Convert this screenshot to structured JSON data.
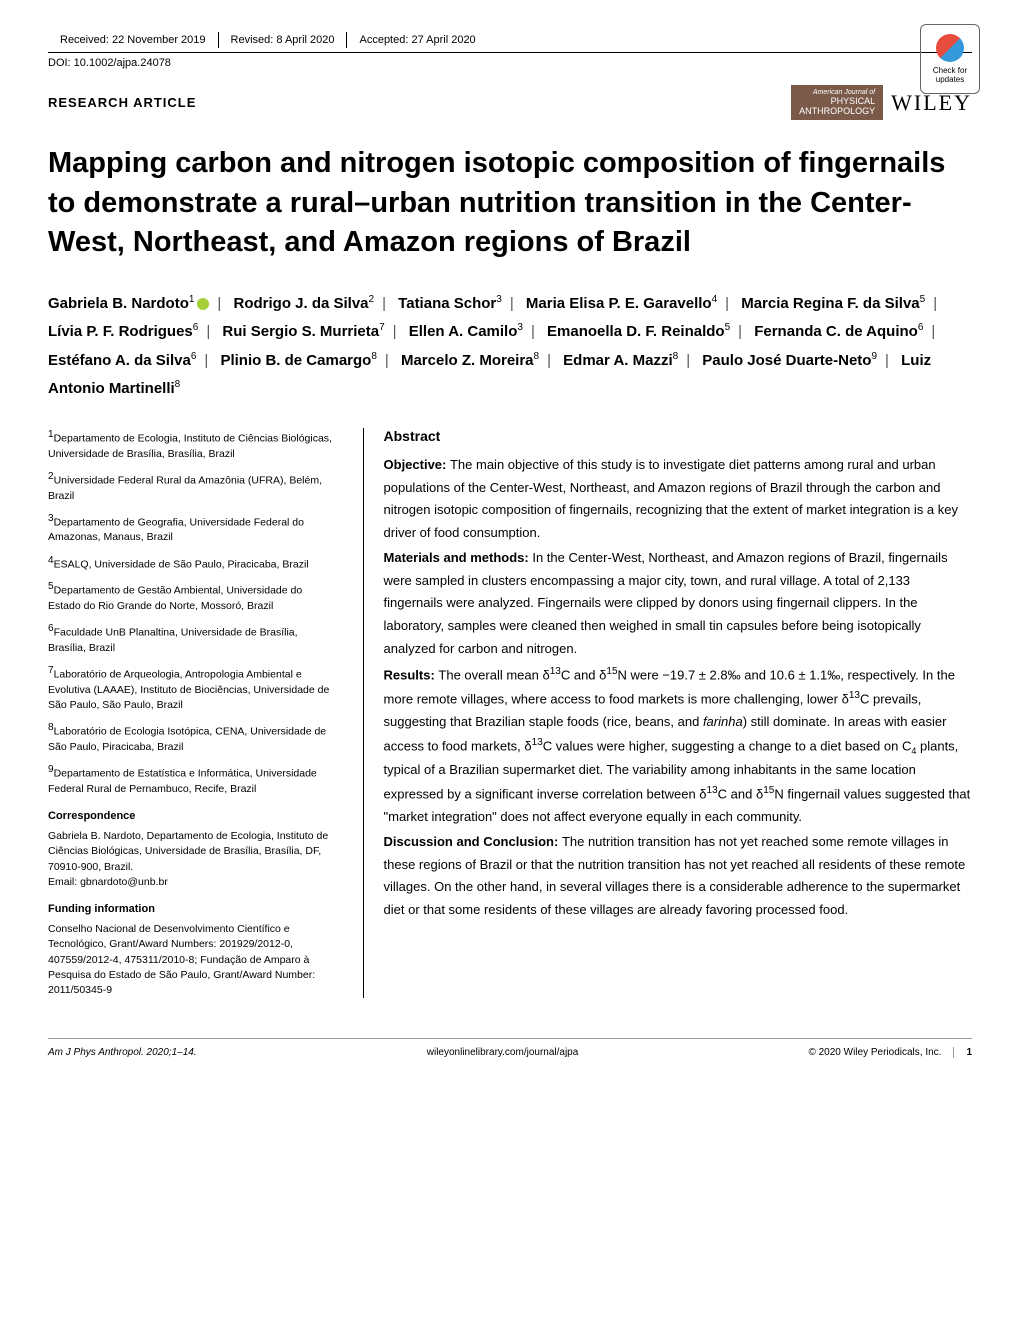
{
  "header": {
    "received": "Received: 22 November 2019",
    "revised": "Revised: 8 April 2020",
    "accepted": "Accepted: 27 April 2020",
    "doi": "DOI: 10.1002/ajpa.24078",
    "check_updates": "Check for updates"
  },
  "article_type": "RESEARCH ARTICLE",
  "journal_badge": {
    "line1": "American Journal of",
    "line2": "PHYSICAL",
    "line3": "ANTHROPOLOGY"
  },
  "publisher": "WILEY",
  "title": "Mapping carbon and nitrogen isotopic composition of fingernails to demonstrate a rural–urban nutrition transition in the Center-West, Northeast, and Amazon regions of Brazil",
  "authors": [
    {
      "name": "Gabriela B. Nardoto",
      "sup": "1",
      "orcid": true
    },
    {
      "name": "Rodrigo J. da Silva",
      "sup": "2"
    },
    {
      "name": "Tatiana Schor",
      "sup": "3"
    },
    {
      "name": "Maria Elisa P. E. Garavello",
      "sup": "4"
    },
    {
      "name": "Marcia Regina F. da Silva",
      "sup": "5"
    },
    {
      "name": "Lívia P. F. Rodrigues",
      "sup": "6"
    },
    {
      "name": "Rui Sergio S. Murrieta",
      "sup": "7"
    },
    {
      "name": "Ellen A. Camilo",
      "sup": "3"
    },
    {
      "name": "Emanoella D. F. Reinaldo",
      "sup": "5"
    },
    {
      "name": "Fernanda C. de Aquino",
      "sup": "6"
    },
    {
      "name": "Estéfano A. da Silva",
      "sup": "6"
    },
    {
      "name": "Plinio B. de Camargo",
      "sup": "8"
    },
    {
      "name": "Marcelo Z. Moreira",
      "sup": "8"
    },
    {
      "name": "Edmar A. Mazzi",
      "sup": "8"
    },
    {
      "name": "Paulo José Duarte-Neto",
      "sup": "9"
    },
    {
      "name": "Luiz Antonio Martinelli",
      "sup": "8"
    }
  ],
  "affiliations": [
    {
      "num": "1",
      "text": "Departamento de Ecologia, Instituto de Ciências Biológicas, Universidade de Brasília, Brasília, Brazil"
    },
    {
      "num": "2",
      "text": "Universidade Federal Rural da Amazônia (UFRA), Belém, Brazil"
    },
    {
      "num": "3",
      "text": "Departamento de Geografia, Universidade Federal do Amazonas, Manaus, Brazil"
    },
    {
      "num": "4",
      "text": "ESALQ, Universidade de São Paulo, Piracicaba, Brazil"
    },
    {
      "num": "5",
      "text": "Departamento de Gestão Ambiental, Universidade do Estado do Rio Grande do Norte, Mossoró, Brazil"
    },
    {
      "num": "6",
      "text": "Faculdade UnB Planaltina, Universidade de Brasília, Brasília, Brazil"
    },
    {
      "num": "7",
      "text": "Laboratório de Arqueologia, Antropologia Ambiental e Evolutiva (LAAAE), Instituto de Biociências, Universidade de São Paulo, São Paulo, Brazil"
    },
    {
      "num": "8",
      "text": "Laboratório de Ecologia Isotópica, CENA, Universidade de São Paulo, Piracicaba, Brazil"
    },
    {
      "num": "9",
      "text": "Departamento de Estatística e Informática, Universidade Federal Rural de Pernambuco, Recife, Brazil"
    }
  ],
  "correspondence": {
    "heading": "Correspondence",
    "text": "Gabriela B. Nardoto, Departamento de Ecologia, Instituto de Ciências Biológicas, Universidade de Brasília, Brasília, DF, 70910-900, Brazil.",
    "email_label": "Email: ",
    "email": "gbnardoto@unb.br"
  },
  "funding": {
    "heading": "Funding information",
    "text": "Conselho Nacional de Desenvolvimento Científico e Tecnológico, Grant/Award Numbers: 201929/2012-0, 407559/2012-4, 475311/2010-8; Fundação de Amparo à Pesquisa do Estado de São Paulo, Grant/Award Number: 2011/50345-9"
  },
  "abstract": {
    "heading": "Abstract",
    "objective_label": "Objective: ",
    "objective": "The main objective of this study is to investigate diet patterns among rural and urban populations of the Center-West, Northeast, and Amazon regions of Brazil through the carbon and nitrogen isotopic composition of fingernails, recognizing that the extent of market integration is a key driver of food consumption.",
    "materials_label": "Materials and methods: ",
    "materials": "In the Center-West, Northeast, and Amazon regions of Brazil, fingernails were sampled in clusters encompassing a major city, town, and rural village. A total of 2,133 fingernails were analyzed. Fingernails were clipped by donors using fingernail clippers. In the laboratory, samples were cleaned then weighed in small tin capsules before being isotopically analyzed for carbon and nitrogen.",
    "results_label": "Results: ",
    "results_pre": "The overall mean δ",
    "results_mid1": "C and δ",
    "results_mid2": "N were −19.7 ± 2.8‰ and 10.6 ± 1.1‰, respectively. In the more remote villages, where access to food markets is more challenging, lower δ",
    "results_mid3": "C prevails, suggesting that Brazilian staple foods (rice, beans, and ",
    "results_farinha": "farinha",
    "results_mid4": ") still dominate. In areas with easier access to food markets, δ",
    "results_mid5": "C values were higher, suggesting a change to a diet based on C",
    "results_mid6": " plants, typical of a Brazilian supermarket diet. The variability among inhabitants in the same location expressed by a significant inverse correlation between δ",
    "results_mid7": "C and δ",
    "results_end": "N fingernail values suggested that \"market integration\" does not affect everyone equally in each community.",
    "discussion_label": "Discussion and Conclusion: ",
    "discussion": "The nutrition transition has not yet reached some remote villages in these regions of Brazil or that the nutrition transition has not yet reached all residents of these remote villages. On the other hand, in several villages there is a considerable adherence to the supermarket diet or that some residents of these villages are already favoring processed food."
  },
  "footer": {
    "citation": "Am J Phys Anthropol. 2020;1–14.",
    "url": "wileyonlinelibrary.com/journal/ajpa",
    "copyright": "© 2020 Wiley Periodicals, Inc.",
    "page": "1"
  },
  "superscripts": {
    "thirteen": "13",
    "fifteen": "15",
    "four": "4"
  }
}
